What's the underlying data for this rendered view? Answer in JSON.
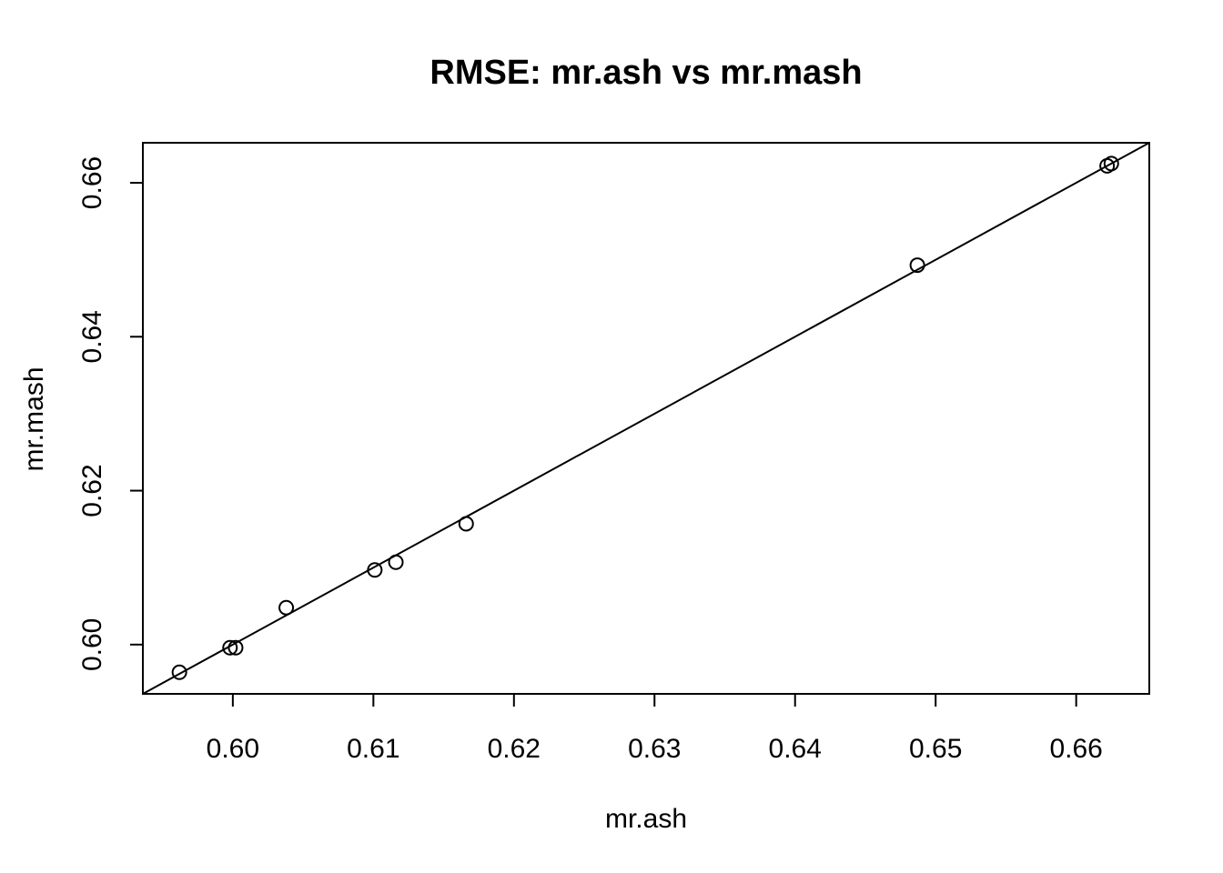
{
  "chart_data": {
    "type": "scatter",
    "title": "RMSE: mr.ash vs mr.mash",
    "xlabel": "mr.ash",
    "ylabel": "mr.mash",
    "xlim": [
      0.5936,
      0.6652
    ],
    "ylim": [
      0.5936,
      0.6652
    ],
    "xticks": [
      0.6,
      0.61,
      0.62,
      0.63,
      0.64,
      0.65,
      0.66
    ],
    "yticks": [
      0.6,
      0.62,
      0.64,
      0.66
    ],
    "xtick_labels": [
      "0.60",
      "0.61",
      "0.62",
      "0.63",
      "0.64",
      "0.65",
      "0.66"
    ],
    "ytick_labels": [
      "0.60",
      "0.62",
      "0.64",
      "0.66"
    ],
    "grid": false,
    "reference_line": {
      "intercept": 0,
      "slope": 1
    },
    "points": [
      {
        "x": 0.5962,
        "y": 0.5964
      },
      {
        "x": 0.5998,
        "y": 0.5996
      },
      {
        "x": 0.6002,
        "y": 0.5996
      },
      {
        "x": 0.6038,
        "y": 0.6048
      },
      {
        "x": 0.6101,
        "y": 0.6097
      },
      {
        "x": 0.6116,
        "y": 0.6107
      },
      {
        "x": 0.6166,
        "y": 0.6157
      },
      {
        "x": 0.6487,
        "y": 0.6493
      },
      {
        "x": 0.6622,
        "y": 0.6622
      },
      {
        "x": 0.6625,
        "y": 0.6625
      }
    ]
  }
}
